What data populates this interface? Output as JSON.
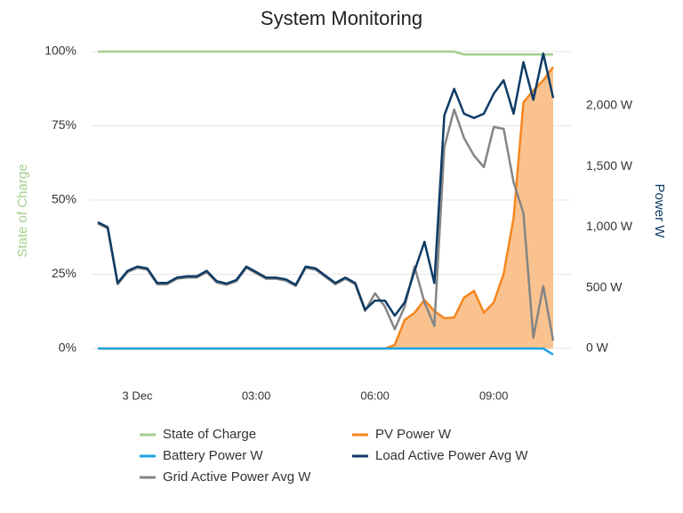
{
  "chart_data": {
    "type": "line",
    "title": "System Monitoring",
    "y_label": "State of Charge",
    "y2_label": "Power W",
    "x": [
      -1,
      -0.75,
      -0.5,
      -0.25,
      0,
      0.25,
      0.5,
      0.75,
      1,
      1.25,
      1.5,
      1.75,
      2,
      2.25,
      2.5,
      2.75,
      3,
      3.25,
      3.5,
      3.75,
      4,
      4.25,
      4.5,
      4.75,
      5,
      5.25,
      5.5,
      5.75,
      6,
      6.25,
      6.5,
      6.75,
      7,
      7.25,
      7.5,
      7.75,
      8,
      8.25,
      8.5,
      8.75,
      9,
      9.25,
      9.5,
      9.75,
      10,
      10.25,
      10.5
    ],
    "xlim": [
      -1,
      10.5
    ],
    "xticks": [
      {
        "value": 0,
        "label": "3 Dec"
      },
      {
        "value": 3,
        "label": "03:00"
      },
      {
        "value": 6,
        "label": "06:00"
      },
      {
        "value": 9,
        "label": "09:00"
      }
    ],
    "ylim": [
      0,
      100
    ],
    "yticks": [
      {
        "value": 0,
        "label": "0%"
      },
      {
        "value": 25,
        "label": "25%"
      },
      {
        "value": 50,
        "label": "50%"
      },
      {
        "value": 75,
        "label": "75%"
      },
      {
        "value": 100,
        "label": "100%"
      }
    ],
    "y2lim": [
      0,
      2447
    ],
    "y2ticks": [
      {
        "value": 0,
        "label": "0 W"
      },
      {
        "value": 500,
        "label": "500 W"
      },
      {
        "value": 1000,
        "label": "1,000 W"
      },
      {
        "value": 1500,
        "label": "1,500 W"
      },
      {
        "value": 2000,
        "label": "2,000 W"
      }
    ],
    "grid": true,
    "legend": "bottom",
    "series": [
      {
        "name": "State of Charge",
        "color": "#a3cf8f",
        "values": [
          100,
          100,
          100,
          100,
          100,
          100,
          100,
          100,
          100,
          100,
          100,
          100,
          100,
          100,
          100,
          100,
          100,
          100,
          100,
          100,
          100,
          100,
          100,
          100,
          100,
          100,
          100,
          100,
          100,
          100,
          100,
          100,
          100,
          100,
          100,
          100,
          100,
          99,
          99,
          99,
          99,
          99,
          99,
          99,
          99,
          99,
          99
        ]
      },
      {
        "name": "PV Power W",
        "color": "#f5861f",
        "fill_color": "#f9c28f",
        "area": true,
        "axis": "y2",
        "values": [
          0,
          0,
          0,
          0,
          0,
          0,
          0,
          0,
          0,
          0,
          0,
          0,
          0,
          0,
          0,
          0,
          0,
          0,
          0,
          0,
          0,
          0,
          0,
          0,
          0,
          0,
          0,
          0,
          0,
          0,
          30,
          235,
          295,
          400,
          310,
          250,
          255,
          420,
          475,
          295,
          380,
          615,
          1075,
          2030,
          2125,
          2210,
          2320
        ]
      },
      {
        "name": "Battery Power W",
        "color": "#1ca3e3",
        "axis": "y2",
        "values": [
          0,
          0,
          0,
          0,
          0,
          0,
          0,
          0,
          0,
          0,
          0,
          0,
          0,
          0,
          0,
          0,
          0,
          0,
          0,
          0,
          0,
          0,
          0,
          0,
          0,
          0,
          0,
          0,
          0,
          0,
          0,
          0,
          0,
          0,
          0,
          0,
          0,
          0,
          0,
          0,
          0,
          0,
          0,
          0,
          0,
          0,
          -50
        ]
      },
      {
        "name": "Load Active Power Avg W",
        "color": "#0d3b66",
        "axis": "y2",
        "values": [
          1040,
          1000,
          540,
          640,
          675,
          660,
          540,
          540,
          585,
          595,
          595,
          640,
          555,
          535,
          565,
          675,
          630,
          585,
          585,
          570,
          525,
          675,
          660,
          600,
          540,
          585,
          540,
          320,
          395,
          395,
          270,
          380,
          640,
          880,
          540,
          1920,
          2140,
          1935,
          1900,
          1935,
          2100,
          2210,
          1935,
          2360,
          2050,
          2430,
          2065
        ]
      },
      {
        "name": "Grid Active Power Avg W",
        "color": "#858585",
        "axis": "y2",
        "values": [
          1030,
          990,
          530,
          630,
          665,
          650,
          530,
          530,
          575,
          585,
          585,
          630,
          545,
          525,
          555,
          665,
          620,
          575,
          575,
          560,
          515,
          665,
          650,
          590,
          530,
          575,
          530,
          310,
          455,
          345,
          160,
          345,
          675,
          380,
          185,
          1660,
          1970,
          1735,
          1590,
          1495,
          1825,
          1810,
          1370,
          1115,
          90,
          515,
          65
        ]
      }
    ]
  }
}
